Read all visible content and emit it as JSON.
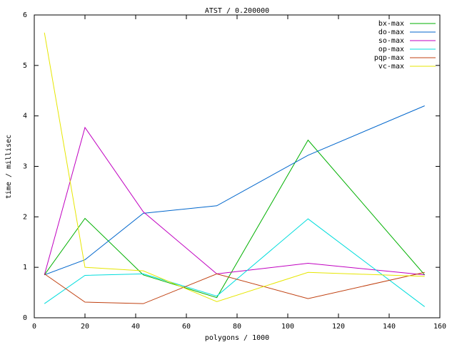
{
  "chart_data": {
    "type": "line",
    "title": "ATST / 0.200000",
    "x_label": "polygons / 1000",
    "y_label": "time / millisec",
    "x": [
      4,
      20,
      43,
      72,
      108,
      154
    ],
    "series": [
      {
        "name": "bx-max",
        "color": "#00b000",
        "values": [
          0.85,
          1.97,
          0.85,
          0.4,
          3.52,
          0.85
        ]
      },
      {
        "name": "do-max",
        "color": "#0066cc",
        "values": [
          0.85,
          1.15,
          2.07,
          2.22,
          3.22,
          4.2
        ]
      },
      {
        "name": "so-max",
        "color": "#c000c0",
        "values": [
          0.85,
          3.77,
          2.1,
          0.87,
          1.08,
          0.85
        ]
      },
      {
        "name": "op-max",
        "color": "#00dcdc",
        "values": [
          0.28,
          0.84,
          0.87,
          0.43,
          1.96,
          0.22
        ]
      },
      {
        "name": "pqp-max",
        "color": "#c04010",
        "values": [
          0.87,
          0.31,
          0.28,
          0.87,
          0.38,
          0.9
        ]
      },
      {
        "name": "vc-max",
        "color": "#e6e600",
        "values": [
          5.65,
          1.0,
          0.93,
          0.32,
          0.9,
          0.82
        ]
      }
    ],
    "xlim": [
      0,
      160
    ],
    "xticks": [
      0,
      20,
      40,
      60,
      80,
      100,
      120,
      140,
      160
    ],
    "ylim": [
      0,
      6
    ],
    "yticks": [
      0,
      1,
      2,
      3,
      4,
      5,
      6
    ],
    "legend": "top-right"
  }
}
